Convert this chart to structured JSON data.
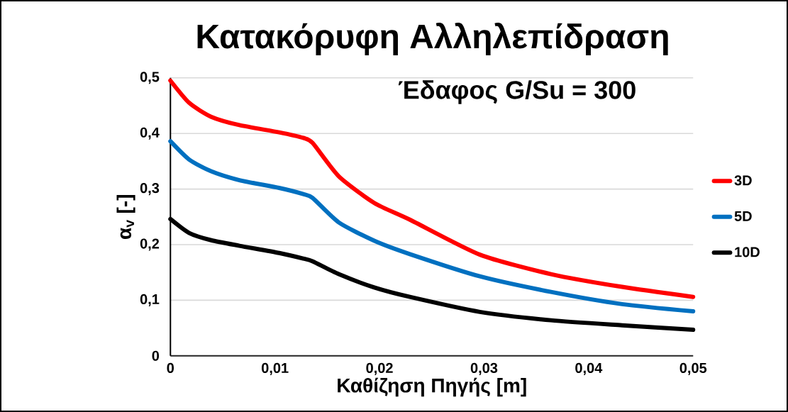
{
  "chart_data": {
    "type": "line",
    "title": "Κατακόρυφη Αλληλεπίδραση",
    "subtitle": "Έδαφος G/Su = 300",
    "xlabel": "Καθίζηση Πηγής [m]",
    "ylabel": "α$_{v}$ [-]",
    "x": [
      0,
      0.0018,
      0.0039,
      0.0066,
      0.0104,
      0.0127,
      0.0136,
      0.0161,
      0.0195,
      0.0229,
      0.0296,
      0.0364,
      0.0432,
      0.05
    ],
    "series": [
      {
        "name": "3D",
        "color": "#ff0000",
        "values": [
          0.495,
          0.455,
          0.43,
          0.415,
          0.402,
          0.392,
          0.383,
          0.323,
          0.275,
          0.245,
          0.182,
          0.147,
          0.124,
          0.106
        ]
      },
      {
        "name": "5D",
        "color": "#0070c0",
        "values": [
          0.386,
          0.353,
          0.332,
          0.316,
          0.302,
          0.291,
          0.284,
          0.24,
          0.207,
          0.183,
          0.143,
          0.115,
          0.093,
          0.08
        ]
      },
      {
        "name": "10D",
        "color": "#000000",
        "values": [
          0.246,
          0.221,
          0.208,
          0.198,
          0.185,
          0.175,
          0.17,
          0.147,
          0.123,
          0.106,
          0.079,
          0.064,
          0.055,
          0.047
        ]
      }
    ],
    "xlim": [
      0,
      0.05
    ],
    "ylim": [
      0,
      0.5
    ],
    "xticks": [
      0,
      {
        "value": 0.01,
        "label": "0,01"
      },
      {
        "value": 0.02,
        "label": "0,02"
      },
      {
        "value": 0.03,
        "label": "0,03"
      },
      {
        "value": 0.04,
        "label": "0,04"
      },
      {
        "value": 0.05,
        "label": "0,05"
      }
    ],
    "yticks": [
      0,
      {
        "value": 0.1,
        "label": "0,1"
      },
      {
        "value": 0.2,
        "label": "0,2"
      },
      {
        "value": 0.3,
        "label": "0,3"
      },
      {
        "value": 0.4,
        "label": "0,4"
      },
      {
        "value": 0.5,
        "label": "0,5"
      }
    ],
    "grid": "y",
    "legend": "right"
  }
}
